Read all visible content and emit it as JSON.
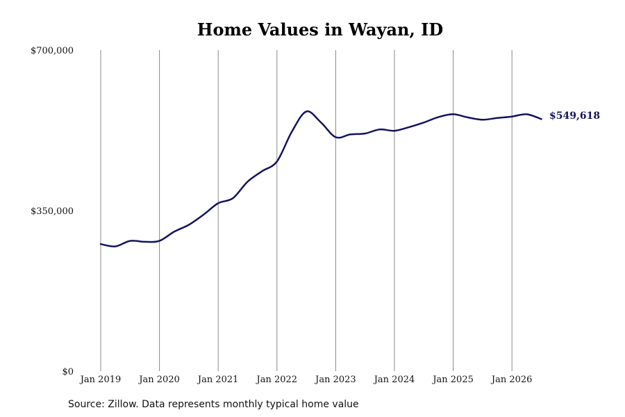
{
  "chart_data": {
    "type": "line",
    "title": "Home Values in Wayan, ID",
    "xlabel": "",
    "ylabel": "",
    "ylim": [
      0,
      700000
    ],
    "y_ticks": [
      0,
      350000,
      700000
    ],
    "y_tick_labels": [
      "$0",
      "$350,000",
      "$700,000"
    ],
    "x_ticks": [
      "2019-01",
      "2020-01",
      "2021-01",
      "2022-01",
      "2023-01",
      "2024-01",
      "2025-01",
      "2026-01"
    ],
    "x_tick_labels": [
      "Jan 2019",
      "Jan 2020",
      "Jan 2021",
      "Jan 2022",
      "Jan 2023",
      "Jan 2024",
      "Jan 2025",
      "Jan 2026"
    ],
    "grid": "vertical",
    "line_color": "#13135e",
    "end_label": "$549,618",
    "series": [
      {
        "x": [
          "2019-01",
          "2019-04",
          "2019-07",
          "2019-10",
          "2020-01",
          "2020-04",
          "2020-07",
          "2020-10",
          "2021-01",
          "2021-04",
          "2021-07",
          "2021-10",
          "2022-01",
          "2022-04",
          "2022-07",
          "2022-10",
          "2023-01",
          "2023-04",
          "2023-07",
          "2023-10",
          "2024-01",
          "2024-04",
          "2024-07",
          "2024-10",
          "2025-01",
          "2025-04",
          "2025-07",
          "2025-10",
          "2026-01",
          "2026-04",
          "2026-07"
        ],
        "y": [
          277000,
          272000,
          284000,
          282000,
          284000,
          304000,
          319000,
          341000,
          366000,
          377000,
          413000,
          436000,
          457000,
          521000,
          566000,
          542000,
          510000,
          516000,
          518000,
          527000,
          524000,
          532000,
          542000,
          554000,
          560000,
          553000,
          548000,
          552000,
          555000,
          560000,
          549618
        ]
      }
    ]
  },
  "source": "Source: Zillow. Data represents monthly typical home value"
}
